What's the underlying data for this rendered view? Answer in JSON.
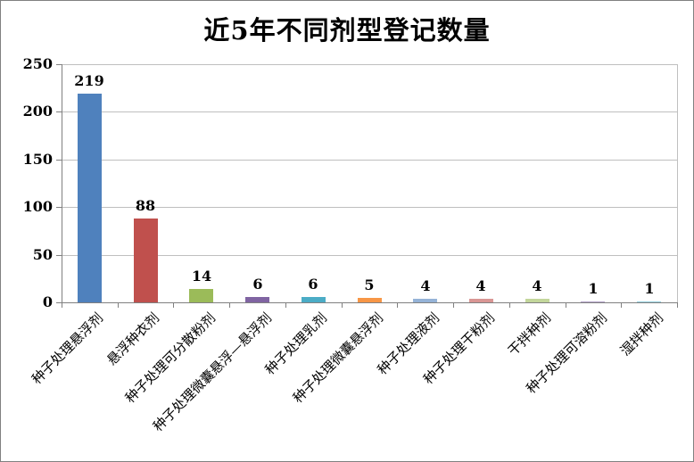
{
  "chart_data": {
    "type": "bar",
    "title": "近5年不同剂型登记数量",
    "categories": [
      "种子处理悬浮剂",
      "悬浮种衣剂",
      "种子处理可分散粉剂",
      "种子处理微囊悬浮—悬浮剂",
      "种子处理乳剂",
      "种子处理微囊悬浮剂",
      "种子处理液剂",
      "种子处理干粉剂",
      "干拌种剂",
      "种子处理可溶粉剂",
      "湿拌种剂"
    ],
    "values": [
      219,
      88,
      14,
      6,
      6,
      5,
      4,
      4,
      4,
      1,
      1
    ],
    "bar_colors": [
      "#4F81BD",
      "#C0504D",
      "#9BBB59",
      "#8064A2",
      "#4BACC6",
      "#F79646",
      "#95B3D7",
      "#D99694",
      "#C3D69B",
      "#B2A1C7",
      "#92CDDC"
    ],
    "xlabel": "",
    "ylabel": "",
    "ylim": [
      0,
      250
    ],
    "y_ticks": [
      0,
      50,
      100,
      150,
      200,
      250
    ],
    "grid": "horizontal",
    "legend": "none",
    "data_labels": true,
    "colors": {
      "background": "#FFFFFF",
      "frame_border": "#808080",
      "axis": "#808080",
      "gridline": "#BFBFBF",
      "text": "#000000"
    }
  }
}
